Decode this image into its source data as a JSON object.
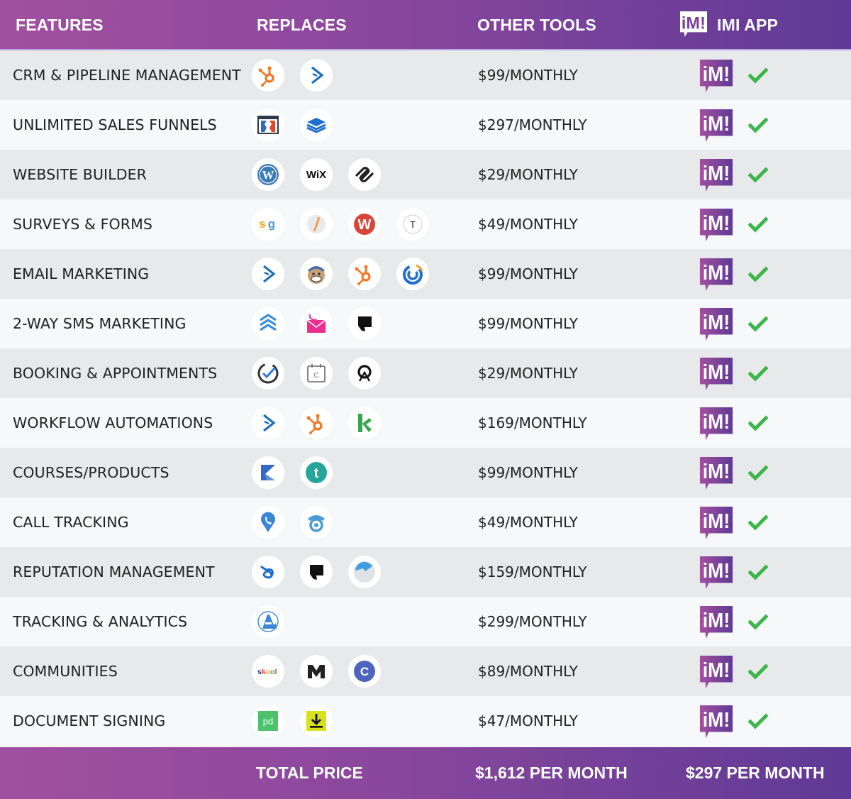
{
  "header": {
    "features": "FEATURES",
    "replaces": "REPLACES",
    "other_tools": "OTHER TOOLS",
    "imi_app": "IMI APP",
    "logo_text": "iM!"
  },
  "colors": {
    "header_gradient_start": "#a1509f",
    "header_gradient_end": "#5f3a96",
    "row_odd": "#e8e9ea",
    "row_even": "#f6f8f9",
    "check_green": "#3cb54a"
  },
  "rows": [
    {
      "feature": "CRM & PIPELINE MANAGEMENT",
      "tools": [
        "hubspot-icon",
        "activecampaign-icon"
      ],
      "price": "$99/MONTHLY",
      "included": true
    },
    {
      "feature": "UNLIMITED SALES FUNNELS",
      "tools": [
        "clickfunnels-icon",
        "leadpages-icon"
      ],
      "price": "$297/MONTHLY",
      "included": true
    },
    {
      "feature": "WEBSITE BUILDER",
      "tools": [
        "wordpress-icon",
        "wix-icon",
        "squarespace-icon"
      ],
      "price": "$29/MONTHLY",
      "included": true
    },
    {
      "feature": "SURVEYS & FORMS",
      "tools": [
        "surveygizmo-icon",
        "formstack-icon",
        "wufoo-icon",
        "typeform-icon"
      ],
      "price": "$49/MONTHLY",
      "included": true
    },
    {
      "feature": "EMAIL MARKETING",
      "tools": [
        "activecampaign-icon",
        "mailchimp-icon",
        "hubspot-icon",
        "constant-contact-icon"
      ],
      "price": "$99/MONTHLY",
      "included": true
    },
    {
      "feature": "2-WAY SMS MARKETING",
      "tools": [
        "simpletexting-icon",
        "eztexting-icon",
        "podium-icon"
      ],
      "price": "$99/MONTHLY",
      "included": true
    },
    {
      "feature": "BOOKING & APPOINTMENTS",
      "tools": [
        "acuity-icon",
        "calendly-icon",
        "setmore-icon"
      ],
      "price": "$29/MONTHLY",
      "included": true
    },
    {
      "feature": "WORKFLOW AUTOMATIONS",
      "tools": [
        "activecampaign-icon",
        "hubspot-icon",
        "keap-icon"
      ],
      "price": "$169/MONTHLY",
      "included": true
    },
    {
      "feature": "COURSES/PRODUCTS",
      "tools": [
        "kajabi-icon",
        "teachable-icon"
      ],
      "price": "$99/MONTHLY",
      "included": true
    },
    {
      "feature": "CALL TRACKING",
      "tools": [
        "callrail-icon",
        "calltrackingmetrics-icon"
      ],
      "price": "$49/MONTHLY",
      "included": true
    },
    {
      "feature": "REPUTATION MANAGEMENT",
      "tools": [
        "birdeye-icon",
        "podium-icon",
        "yext-icon"
      ],
      "price": "$159/MONTHLY",
      "included": true
    },
    {
      "feature": "TRACKING & ANALYTICS",
      "tools": [
        "analytics-a-icon"
      ],
      "price": "$299/MONTHLY",
      "included": true
    },
    {
      "feature": "COMMUNITIES",
      "tools": [
        "skool-icon",
        "mighty-networks-icon",
        "circle-icon"
      ],
      "price": "$89/MONTHLY",
      "included": true
    },
    {
      "feature": "DOCUMENT SIGNING",
      "tools": [
        "pandadoc-icon",
        "docusign-download-icon"
      ],
      "price": "$47/MONTHLY",
      "included": true
    }
  ],
  "footer": {
    "label": "TOTAL PRICE",
    "other_total": "$1,612 PER MONTH",
    "imi_total": "$297 PER MONTH"
  }
}
